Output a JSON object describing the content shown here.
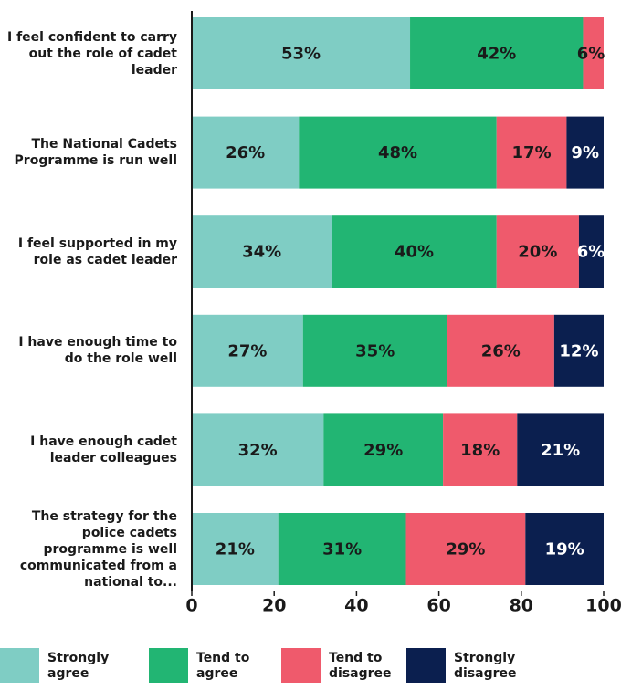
{
  "chart_data": {
    "type": "stacked_barh",
    "categories": [
      "I feel confident to carry out the role of cadet leader",
      "The National Cadets Programme is run well",
      "I feel supported in my role as cadet leader",
      "I have enough time to do the role well",
      "I have enough cadet leader colleagues",
      "The strategy for the police cadets programme is well communicated from a national to..."
    ],
    "series": [
      {
        "name": "Strongly agree",
        "color": "#7fcdc4",
        "label_color": "#1a1a1a",
        "values": [
          53,
          26,
          34,
          27,
          32,
          21
        ],
        "value_labels": [
          "53%",
          "26%",
          "34%",
          "27%",
          "32%",
          "21%"
        ]
      },
      {
        "name": "Tend to agree",
        "color": "#22b573",
        "label_color": "#1a1a1a",
        "values": [
          42,
          48,
          40,
          35,
          29,
          31
        ],
        "value_labels": [
          "42%",
          "48%",
          "40%",
          "35%",
          "29%",
          "31%"
        ]
      },
      {
        "name": "Tend to disagree",
        "color": "#ef5a6c",
        "label_color": "#1a1a1a",
        "values": [
          6,
          17,
          20,
          26,
          18,
          29
        ],
        "value_labels": [
          "6%",
          "17%",
          "20%",
          "26%",
          "18%",
          "29%"
        ]
      },
      {
        "name": "Strongly disagree",
        "color": "#0b1f4f",
        "label_color": "#ffffff",
        "values": [
          null,
          9,
          6,
          12,
          21,
          19
        ],
        "value_labels": [
          null,
          "9%",
          "6%",
          "12%",
          "21%",
          "19%"
        ]
      }
    ],
    "xlim": [
      0,
      100
    ],
    "xticks": [
      0,
      20,
      40,
      60,
      80,
      100
    ],
    "legend": "bottom"
  }
}
